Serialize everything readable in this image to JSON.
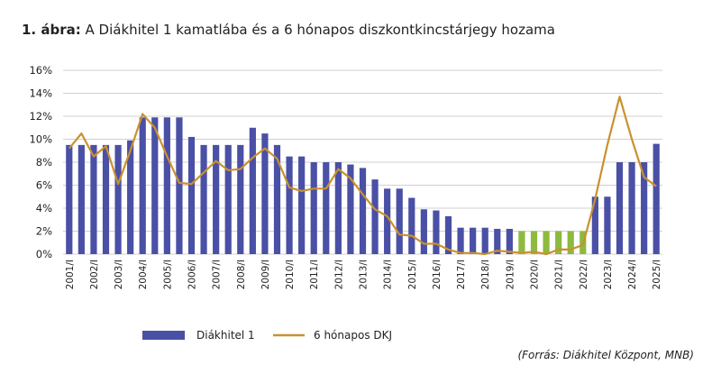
{
  "chart_data": {
    "type": "bar_line",
    "title_prefix": "1. ábra:",
    "title": "A Diákhitel 1 kamatlába és a 6 hónapos diszkontkincstárjegy hozama",
    "source": "(Forrás: Diákhitel Központ, MNB)",
    "categories": [
      "2001/I",
      null,
      "2002/I",
      null,
      "2003/I",
      null,
      "2004/I",
      null,
      "2005/I",
      null,
      "2006/I",
      null,
      "2007/I",
      null,
      "2008/I",
      null,
      "2009/I",
      null,
      "2010/I",
      null,
      "2011/I",
      null,
      "2012/I",
      null,
      "2013/I",
      null,
      "2014/I",
      null,
      "2015/I",
      null,
      "2016/I",
      null,
      "2017/I",
      null,
      "2018/I",
      null,
      "2019/I",
      null,
      "2020/I",
      null,
      "2021/I",
      null,
      "2022/I",
      null,
      "2023/I",
      null,
      "2024/I",
      null,
      "2025/I"
    ],
    "series": [
      {
        "name": "Diákhitel 1",
        "type": "bar",
        "color": "#4a50a5",
        "colors": [
          "#4a50a5",
          "#4a50a5",
          "#4a50a5",
          "#4a50a5",
          "#4a50a5",
          "#4a50a5",
          "#4a50a5",
          "#4a50a5",
          "#4a50a5",
          "#4a50a5",
          "#4a50a5",
          "#4a50a5",
          "#4a50a5",
          "#4a50a5",
          "#4a50a5",
          "#4a50a5",
          "#4a50a5",
          "#4a50a5",
          "#4a50a5",
          "#4a50a5",
          "#4a50a5",
          "#4a50a5",
          "#4a50a5",
          "#4a50a5",
          "#4a50a5",
          "#4a50a5",
          "#4a50a5",
          "#4a50a5",
          "#4a50a5",
          "#4a50a5",
          "#4a50a5",
          "#4a50a5",
          "#4a50a5",
          "#4a50a5",
          "#4a50a5",
          "#4a50a5",
          "#4a50a5",
          "#8dba3f",
          "#8dba3f",
          "#8dba3f",
          "#8dba3f",
          "#8dba3f",
          "#8dba3f",
          "#4a50a5",
          "#4a50a5",
          "#4a50a5",
          "#4a50a5",
          "#4a50a5",
          "#4a50a5"
        ],
        "values": [
          9.5,
          9.5,
          9.5,
          9.5,
          9.5,
          9.9,
          11.9,
          11.9,
          11.9,
          11.9,
          10.2,
          9.5,
          9.5,
          9.5,
          9.5,
          11.0,
          10.5,
          9.5,
          8.5,
          8.5,
          8.0,
          8.0,
          8.0,
          7.8,
          7.5,
          6.5,
          5.7,
          5.7,
          4.9,
          3.9,
          3.8,
          3.3,
          2.3,
          2.3,
          2.3,
          2.2,
          2.2,
          2.0,
          2.0,
          2.0,
          2.0,
          2.0,
          2.0,
          5.0,
          5.0,
          8.0,
          8.0,
          8.0,
          9.6
        ]
      },
      {
        "name": "6 hónapos DKJ",
        "type": "line",
        "color": "#c9912f",
        "values": [
          9.2,
          10.5,
          8.5,
          9.4,
          6.1,
          9.0,
          12.2,
          11.0,
          8.5,
          6.2,
          6.1,
          7.1,
          8.1,
          7.3,
          7.4,
          8.4,
          9.2,
          8.3,
          5.8,
          5.5,
          5.7,
          5.7,
          7.4,
          6.6,
          5.2,
          3.9,
          3.3,
          1.7,
          1.6,
          0.9,
          0.9,
          0.4,
          0.1,
          0.1,
          0.0,
          0.3,
          0.2,
          0.1,
          0.2,
          0.0,
          0.4,
          0.4,
          0.8,
          4.8,
          9.5,
          13.7,
          10.0,
          6.7,
          5.9
        ]
      }
    ],
    "ylim": [
      0,
      16
    ],
    "yticks": [
      {
        "value": 0,
        "label": "0%"
      },
      {
        "value": 2,
        "label": "2%"
      },
      {
        "value": 4,
        "label": "4%"
      },
      {
        "value": 6,
        "label": "6%"
      },
      {
        "value": 8,
        "label": "8%"
      },
      {
        "value": 10,
        "label": "10%"
      },
      {
        "value": 12,
        "label": "12%"
      },
      {
        "value": 14,
        "label": "14%"
      },
      {
        "value": 16,
        "label": "16%"
      }
    ],
    "grid": true
  }
}
